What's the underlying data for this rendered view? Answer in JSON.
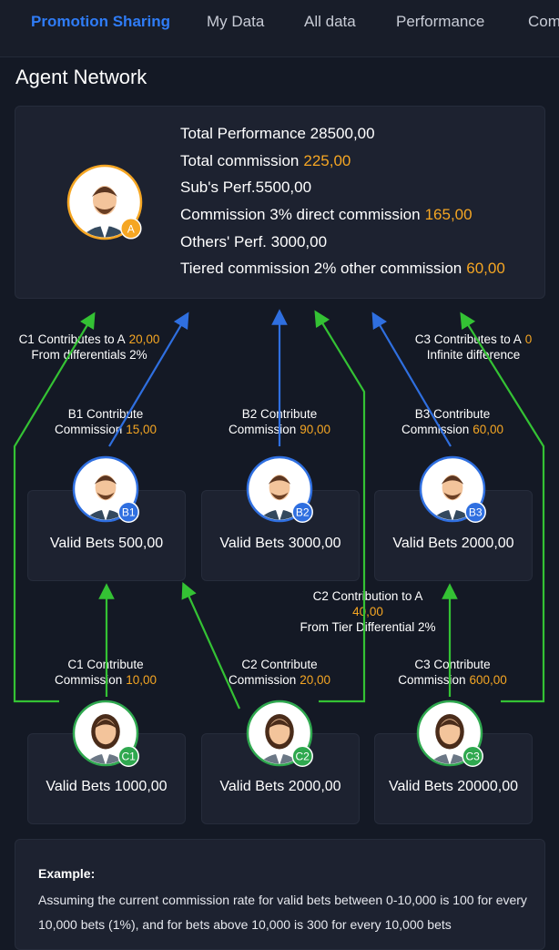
{
  "tabs": [
    "Promotion Sharing",
    "My Data",
    "All data",
    "Performance",
    "Com"
  ],
  "section_title": "Agent Network",
  "summary": {
    "badge": "A",
    "lines": [
      {
        "label": "Total Performance 28500,00"
      },
      {
        "label": "Total commission",
        "value": "225,00"
      },
      {
        "label": "Sub's Perf.5500,00"
      },
      {
        "label": "Commission 3% direct commission",
        "value": "165,00"
      },
      {
        "label": "Others' Perf. 3000,00"
      },
      {
        "label": "Tiered commission 2% other commission",
        "value": "60,00"
      }
    ]
  },
  "annotations": {
    "c1_to_a": {
      "line1": "C1 Contributes to A",
      "amount": "20,00",
      "line2": "From differentials 2%"
    },
    "c3_to_a": {
      "line1": "C3 Contributes to A",
      "amount": "0",
      "line2": "Infinite difference"
    },
    "c2_to_a": {
      "line1": "C2 Contribution to A",
      "amount": "40,00",
      "line2": "From Tier Differential 2%"
    }
  },
  "tier_b": [
    {
      "badge": "B1",
      "title": "B1 Contribute",
      "commission_label": "Commission",
      "commission": "15,00",
      "valid_bets": "Valid Bets 500,00"
    },
    {
      "badge": "B2",
      "title": "B2 Contribute",
      "commission_label": "Commission",
      "commission": "90,00",
      "valid_bets": "Valid Bets 3000,00"
    },
    {
      "badge": "B3",
      "title": "B3 Contribute",
      "commission_label": "Commission",
      "commission": "60,00",
      "valid_bets": "Valid Bets 2000,00"
    }
  ],
  "tier_c": [
    {
      "badge": "C1",
      "title": "C1 Contribute",
      "commission_label": "Commission",
      "commission": "10,00",
      "valid_bets": "Valid Bets 1000,00"
    },
    {
      "badge": "C2",
      "title": "C2 Contribute",
      "commission_label": "Commission",
      "commission": "20,00",
      "valid_bets": "Valid Bets 2000,00"
    },
    {
      "badge": "C3",
      "title": "C3 Contribute",
      "commission_label": "Commission",
      "commission": "600,00",
      "valid_bets": "Valid Bets 20000,00"
    }
  ],
  "example": {
    "heading": "Example:",
    "text": "Assuming the current commission rate for valid bets between 0-10,000 is 100 for every 10,000 bets (1%), and for bets above 10,000 is 300 for every 10,000 bets"
  }
}
